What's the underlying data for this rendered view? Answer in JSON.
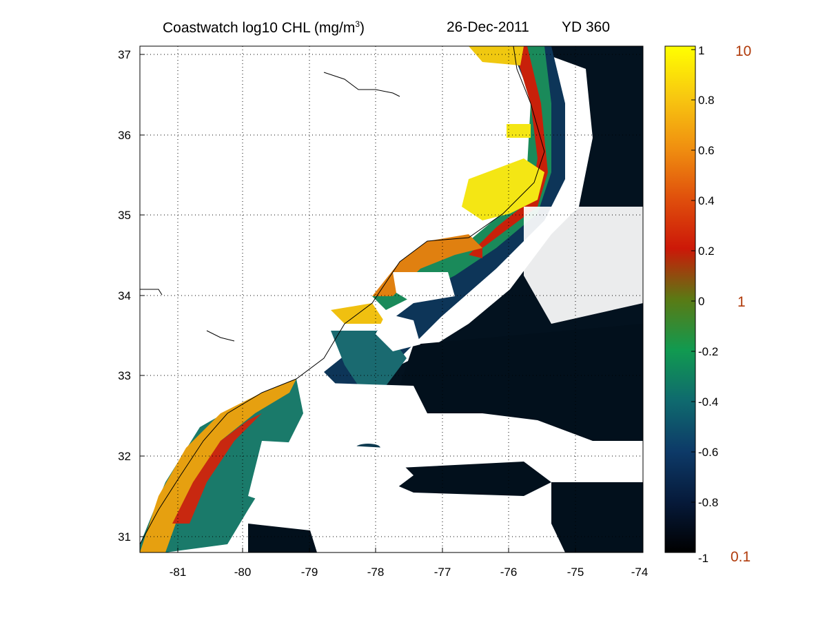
{
  "title": {
    "main": "Coastwatch  log10  CHL (mg/m",
    "sup": "3",
    "close": ")",
    "date": "26-Dec-2011",
    "yd": "YD 360"
  },
  "axes": {
    "lon_ticks": [
      "-81",
      "-80",
      "-79",
      "-78",
      "-77",
      "-76",
      "-75",
      "-74"
    ],
    "lat_ticks": [
      "31",
      "32",
      "33",
      "34",
      "35",
      "36",
      "37"
    ],
    "lon_range": [
      -81.6,
      -74
    ],
    "lat_range": [
      30.8,
      37.1
    ]
  },
  "colorbar": {
    "ticks": [
      "1",
      "0.8",
      "0.6",
      "0.4",
      "0.2",
      "0",
      "-0.2",
      "-0.4",
      "-0.6",
      "-0.8",
      "-1"
    ],
    "range": [
      -1,
      1
    ],
    "right_labels": [
      "10",
      "1",
      "0.1"
    ],
    "colormap": [
      "#000000",
      "#0a2a5a",
      "#0f6a6a",
      "#119060",
      "#158a18",
      "#9a3a0a",
      "#d01010",
      "#e07010",
      "#f0b010",
      "#ffff00"
    ]
  }
}
